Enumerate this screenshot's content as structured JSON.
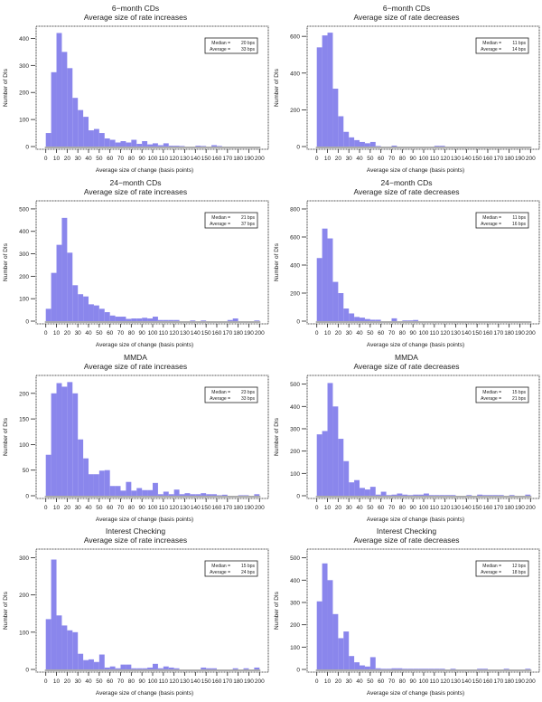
{
  "chart_data": [
    {
      "type": "bar",
      "title": "6−month CDs",
      "subtitle": "Average size of rate increases",
      "xlabel": "Average size of change (basis points)",
      "ylabel": "Number of DIs",
      "bin_width": 5,
      "xlim": [
        0,
        200
      ],
      "ylim": [
        0,
        445
      ],
      "yticks": [
        0,
        100,
        200,
        300,
        400
      ],
      "legend": {
        "median": "Median =",
        "median_value": "20 bps",
        "average": "Average =",
        "average_value": "33 bps"
      },
      "values": [
        50,
        275,
        420,
        350,
        290,
        180,
        135,
        110,
        60,
        65,
        50,
        30,
        25,
        15,
        20,
        15,
        25,
        10,
        20,
        8,
        12,
        5,
        12,
        3,
        3,
        2,
        0,
        0,
        3,
        2,
        0,
        5,
        2,
        0,
        0,
        0,
        0,
        0,
        0,
        0
      ]
    },
    {
      "type": "bar",
      "title": "6−month CDs",
      "subtitle": "Average size of rate decreases",
      "xlabel": "Average size of change (basis points)",
      "ylabel": "Number of DIs",
      "bin_width": 5,
      "xlim": [
        0,
        200
      ],
      "ylim": [
        0,
        655
      ],
      "yticks": [
        0,
        200,
        400,
        600
      ],
      "legend": {
        "median": "Median =",
        "median_value": "11 bps",
        "average": "Average =",
        "average_value": "14 bps"
      },
      "values": [
        540,
        605,
        620,
        315,
        165,
        80,
        50,
        35,
        25,
        18,
        25,
        3,
        0,
        0,
        5,
        0,
        0,
        0,
        0,
        0,
        0,
        0,
        4,
        4,
        0,
        0,
        0,
        0,
        0,
        0,
        0,
        0,
        0,
        0,
        0,
        0,
        0,
        0,
        0,
        0
      ]
    },
    {
      "type": "bar",
      "title": "24−month CDs",
      "subtitle": "Average size of rate increases",
      "xlabel": "Average size of change (basis points)",
      "ylabel": "Number of DIs",
      "bin_width": 5,
      "xlim": [
        0,
        200
      ],
      "ylim": [
        0,
        536
      ],
      "yticks": [
        0,
        100,
        200,
        300,
        400,
        500
      ],
      "legend": {
        "median": "Median =",
        "median_value": "21 bps",
        "average": "Average =",
        "average_value": "37 bps"
      },
      "values": [
        55,
        215,
        340,
        460,
        305,
        160,
        120,
        110,
        75,
        70,
        55,
        40,
        25,
        20,
        20,
        10,
        12,
        12,
        15,
        12,
        20,
        5,
        5,
        5,
        5,
        0,
        0,
        3,
        0,
        3,
        0,
        0,
        0,
        0,
        5,
        12,
        0,
        0,
        0,
        3
      ]
    },
    {
      "type": "bar",
      "title": "24−month CDs",
      "subtitle": "Average size of rate decreases",
      "xlabel": "Average size of change (basis points)",
      "ylabel": "Number of DIs",
      "bin_width": 5,
      "xlim": [
        0,
        200
      ],
      "ylim": [
        0,
        858
      ],
      "yticks": [
        0,
        200,
        400,
        600,
        800
      ],
      "legend": {
        "median": "Median =",
        "median_value": "11 bps",
        "average": "Average =",
        "average_value": "16 bps"
      },
      "values": [
        450,
        660,
        590,
        280,
        200,
        90,
        55,
        30,
        25,
        15,
        10,
        10,
        0,
        0,
        20,
        0,
        5,
        5,
        8,
        0,
        0,
        0,
        0,
        0,
        0,
        0,
        0,
        0,
        0,
        0,
        0,
        0,
        0,
        0,
        0,
        0,
        0,
        0,
        0,
        0
      ]
    },
    {
      "type": "bar",
      "title": "MMDA",
      "subtitle": "Average size of rate increases",
      "xlabel": "Average size of change (basis points)",
      "ylabel": "Number of DIs",
      "bin_width": 5,
      "xlim": [
        0,
        200
      ],
      "ylim": [
        0,
        235
      ],
      "yticks": [
        0,
        50,
        100,
        150,
        200
      ],
      "legend": {
        "median": "Median =",
        "median_value": "23 bps",
        "average": "Average =",
        "average_value": "33 bps"
      },
      "values": [
        80,
        200,
        220,
        213,
        222,
        200,
        110,
        73,
        42,
        42,
        49,
        50,
        19,
        19,
        10,
        27,
        10,
        15,
        11,
        11,
        25,
        3,
        8,
        3,
        12,
        3,
        5,
        3,
        3,
        5,
        3,
        3,
        1,
        2,
        0,
        0,
        1,
        1,
        0,
        3
      ]
    },
    {
      "type": "bar",
      "title": "MMDA",
      "subtitle": "Average size of rate decreases",
      "xlabel": "Average size of change (basis points)",
      "ylabel": "Number of DIs",
      "bin_width": 5,
      "xlim": [
        0,
        200
      ],
      "ylim": [
        0,
        539
      ],
      "yticks": [
        0,
        100,
        200,
        300,
        400,
        500
      ],
      "legend": {
        "median": "Median =",
        "median_value": "15 bps",
        "average": "Average =",
        "average_value": "21 bps"
      },
      "values": [
        275,
        290,
        505,
        400,
        255,
        155,
        60,
        70,
        35,
        28,
        40,
        5,
        18,
        3,
        5,
        10,
        5,
        3,
        5,
        5,
        10,
        3,
        3,
        3,
        3,
        3,
        0,
        0,
        3,
        0,
        5,
        3,
        3,
        3,
        3,
        0,
        3,
        0,
        0,
        5
      ]
    },
    {
      "type": "bar",
      "title": "Interest Checking",
      "subtitle": "Average size of rate increases",
      "xlabel": "Average size of change (basis points)",
      "ylabel": "Number of DIs",
      "bin_width": 5,
      "xlim": [
        0,
        200
      ],
      "ylim": [
        0,
        323
      ],
      "yticks": [
        0,
        100,
        200,
        300
      ],
      "legend": {
        "median": "Median =",
        "median_value": "15 bps",
        "average": "Average =",
        "average_value": "24 bps"
      },
      "values": [
        135,
        295,
        145,
        118,
        105,
        100,
        42,
        25,
        27,
        20,
        40,
        5,
        8,
        3,
        13,
        13,
        3,
        3,
        3,
        5,
        15,
        3,
        8,
        5,
        3,
        0,
        0,
        0,
        0,
        5,
        3,
        3,
        0,
        0,
        0,
        3,
        0,
        3,
        0,
        5
      ]
    },
    {
      "type": "bar",
      "title": "Interest Checking",
      "subtitle": "Average size of rate decreases",
      "xlabel": "Average size of change (basis points)",
      "ylabel": "Number of DIs",
      "bin_width": 5,
      "xlim": [
        0,
        200
      ],
      "ylim": [
        0,
        539
      ],
      "yticks": [
        0,
        100,
        200,
        300,
        400,
        500
      ],
      "legend": {
        "median": "Median =",
        "median_value": "12 bps",
        "average": "Average =",
        "average_value": "18 bps"
      },
      "values": [
        305,
        475,
        400,
        248,
        140,
        170,
        60,
        32,
        18,
        13,
        55,
        5,
        3,
        3,
        5,
        5,
        3,
        3,
        3,
        3,
        3,
        3,
        3,
        3,
        0,
        3,
        0,
        0,
        0,
        0,
        3,
        3,
        0,
        0,
        0,
        3,
        0,
        0,
        0,
        3
      ]
    }
  ],
  "xticks": [
    0,
    10,
    20,
    30,
    40,
    50,
    60,
    70,
    80,
    90,
    100,
    110,
    120,
    130,
    140,
    150,
    160,
    170,
    180,
    190,
    200
  ],
  "colors": {
    "bar": "#8a86ec",
    "axis": "#222222"
  }
}
